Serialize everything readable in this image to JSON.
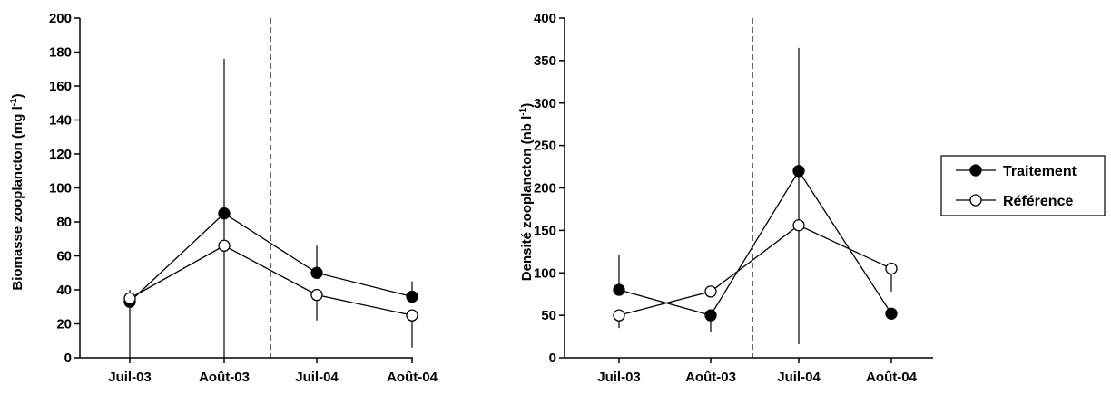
{
  "chart_data": [
    {
      "type": "line",
      "title": "",
      "xlabel": "",
      "ylabel": "Biomasse zooplancton (mg l",
      "ylabel_sup": "-1",
      "ylabel_close": ")",
      "categories": [
        "Juil-03",
        "Août-03",
        "Juil-04",
        "Août-04"
      ],
      "ylim": [
        0,
        200
      ],
      "yticks": [
        0,
        20,
        40,
        60,
        80,
        100,
        120,
        140,
        160,
        180,
        200
      ],
      "divider_after_index": 1,
      "series": [
        {
          "name": "Traitement",
          "marker": "filled",
          "values": [
            33,
            85,
            50,
            36
          ],
          "error_low": [
            0,
            0,
            50,
            36
          ],
          "error_high": [
            36,
            176,
            66,
            45
          ]
        },
        {
          "name": "Référence",
          "marker": "open",
          "values": [
            35,
            66,
            37,
            25
          ],
          "error_low": [
            35,
            66,
            22,
            6
          ],
          "error_high": [
            40,
            66,
            37,
            25
          ]
        }
      ]
    },
    {
      "type": "line",
      "title": "",
      "xlabel": "",
      "ylabel": "Densité zooplancton (nb l",
      "ylabel_sup": "-1",
      "ylabel_close": ")",
      "categories": [
        "Juil-03",
        "Août-03",
        "Juil-04",
        "Août-04"
      ],
      "ylim": [
        0,
        400
      ],
      "yticks": [
        0,
        50,
        100,
        150,
        200,
        250,
        300,
        350,
        400
      ],
      "divider_after_index": 1,
      "series": [
        {
          "name": "Traitement",
          "marker": "filled",
          "values": [
            80,
            50,
            220,
            52
          ],
          "error_low": [
            80,
            30,
            16,
            52
          ],
          "error_high": [
            121,
            50,
            365,
            52
          ]
        },
        {
          "name": "Référence",
          "marker": "open",
          "values": [
            50,
            78,
            156,
            105
          ],
          "error_low": [
            35,
            78,
            156,
            78
          ],
          "error_high": [
            50,
            78,
            156,
            105
          ]
        }
      ]
    }
  ],
  "legend": {
    "placement": "right",
    "items": [
      {
        "label": "Traitement",
        "marker": "filled"
      },
      {
        "label": "Référence",
        "marker": "open"
      }
    ]
  }
}
